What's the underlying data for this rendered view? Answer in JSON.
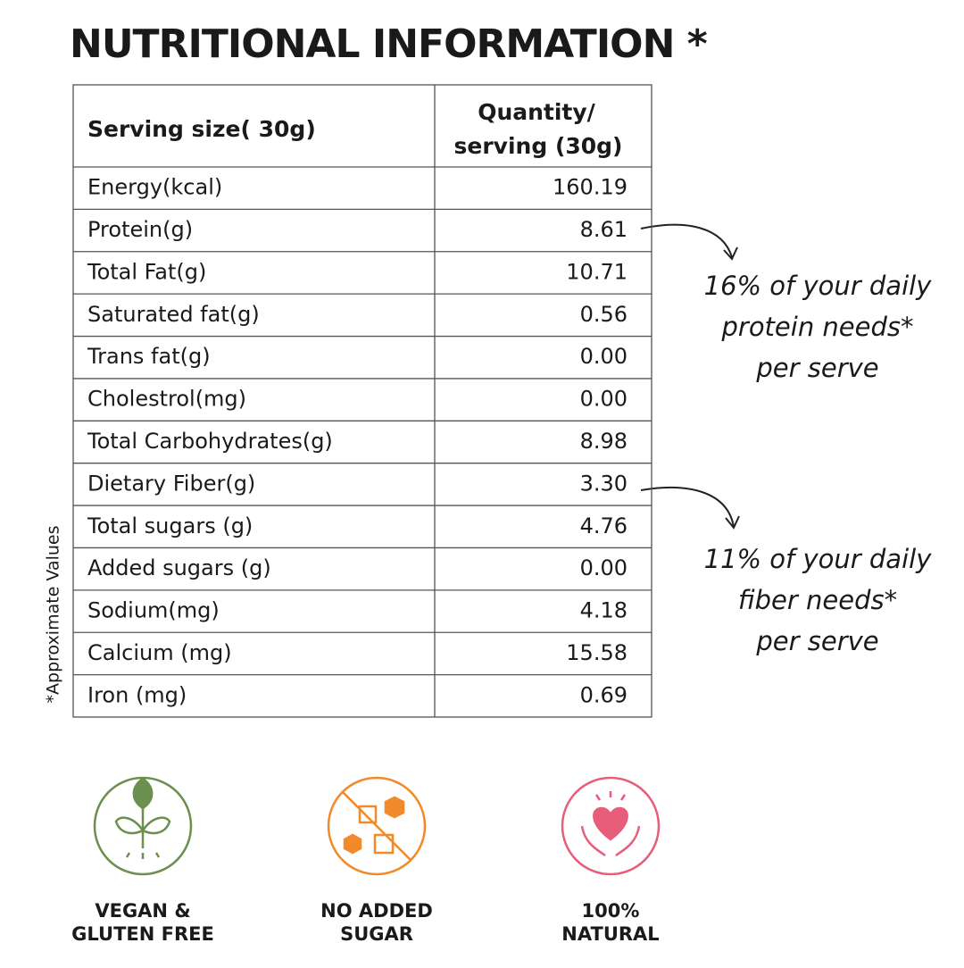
{
  "title": "NUTRITIONAL INFORMATION *",
  "table": {
    "header": [
      "Serving size( 30g)",
      "Quantity/",
      "serving (30g)"
    ],
    "rows": [
      [
        "Energy(kcal)",
        "160.19"
      ],
      [
        "Protein(g)",
        "8.61"
      ],
      [
        "Total Fat(g)",
        "10.71"
      ],
      [
        "Saturated fat(g)",
        "0.56"
      ],
      [
        "Trans fat(g)",
        "0.00"
      ],
      [
        "Cholestrol(mg)",
        "0.00"
      ],
      [
        "Total Carbohydrates(g)",
        "8.98"
      ],
      [
        "Dietary Fiber(g)",
        "3.30"
      ],
      [
        "Total sugars (g)",
        "4.76"
      ],
      [
        "Added sugars (g)",
        "0.00"
      ],
      [
        "Sodium(mg)",
        "4.18"
      ],
      [
        "Calcium (mg)",
        "15.58"
      ],
      [
        "Iron (mg)",
        "0.69"
      ]
    ]
  },
  "side_note": "*Approximate Values",
  "annotations": [
    {
      "lines": [
        "16% of your daily",
        "protein needs*",
        "per serve"
      ]
    },
    {
      "lines": [
        "11% of your daily",
        "fiber needs*",
        "per serve"
      ]
    }
  ],
  "badges": [
    {
      "lines": [
        "VEGAN &",
        "GLUTEN FREE"
      ]
    },
    {
      "lines": [
        "NO ADDED",
        "SUGAR"
      ]
    },
    {
      "lines": [
        "100%",
        "NATURAL"
      ]
    }
  ]
}
